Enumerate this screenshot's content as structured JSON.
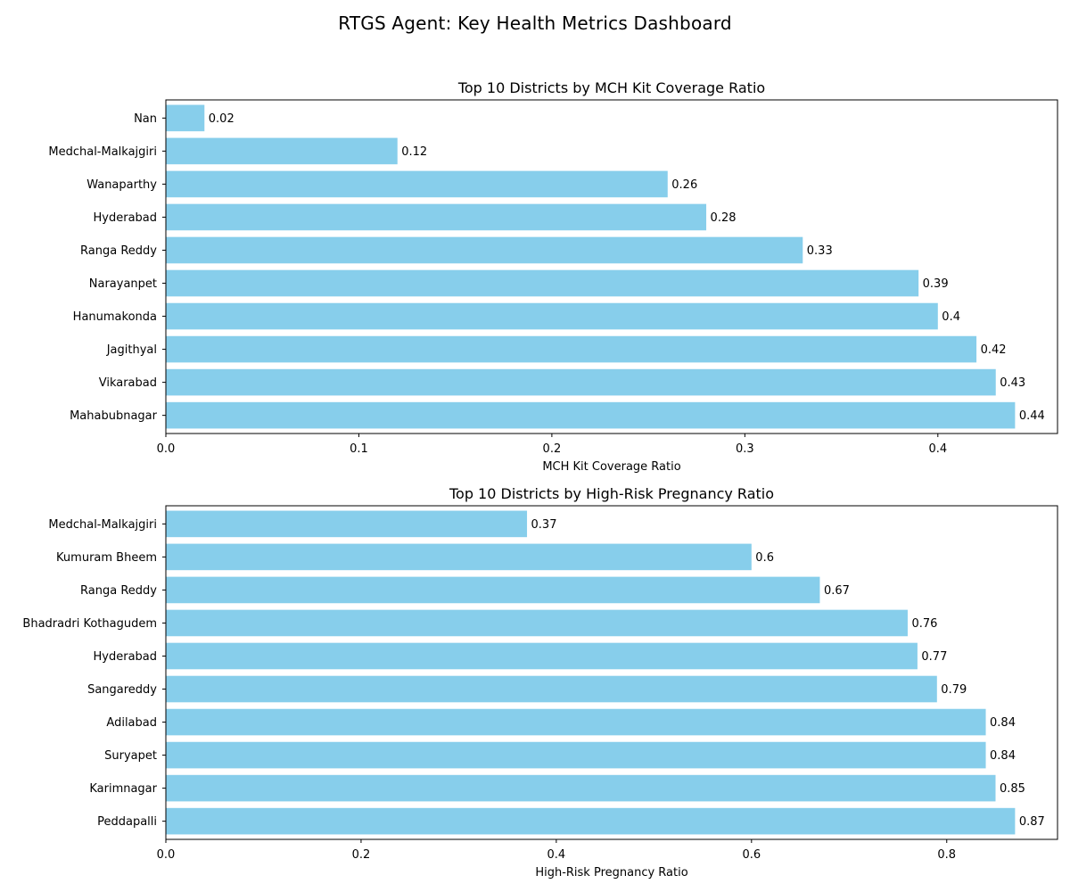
{
  "suptitle": "RTGS Agent: Key Health Metrics Dashboard",
  "colors": {
    "bar": "#87ceeb",
    "axis": "#000000",
    "background": "#ffffff"
  },
  "chart_data": [
    {
      "type": "bar",
      "orientation": "horizontal",
      "title": "Top 10 Districts by MCH Kit Coverage Ratio",
      "xlabel": "MCH Kit Coverage Ratio",
      "ylabel": "",
      "xlim": [
        0,
        0.462
      ],
      "xticks": [
        0.0,
        0.1,
        0.2,
        0.3,
        0.4
      ],
      "xtick_labels": [
        "0.0",
        "0.1",
        "0.2",
        "0.3",
        "0.4"
      ],
      "grid": false,
      "categories": [
        "Nan",
        "Medchal-Malkajgiri",
        "Wanaparthy",
        "Hyderabad",
        "Ranga Reddy",
        "Narayanpet",
        "Hanumakonda",
        "Jagithyal",
        "Vikarabad",
        "Mahabubnagar"
      ],
      "values": [
        0.02,
        0.12,
        0.26,
        0.28,
        0.33,
        0.39,
        0.4,
        0.42,
        0.43,
        0.44
      ],
      "data_labels": [
        "0.02",
        "0.12",
        "0.26",
        "0.28",
        "0.33",
        "0.39",
        "0.4",
        "0.42",
        "0.43",
        "0.44"
      ]
    },
    {
      "type": "bar",
      "orientation": "horizontal",
      "title": "Top 10 Districts by High-Risk Pregnancy Ratio",
      "xlabel": "High-Risk Pregnancy Ratio",
      "ylabel": "",
      "xlim": [
        0,
        0.9135
      ],
      "xticks": [
        0.0,
        0.2,
        0.4,
        0.6,
        0.8
      ],
      "xtick_labels": [
        "0.0",
        "0.2",
        "0.4",
        "0.6",
        "0.8"
      ],
      "grid": false,
      "categories": [
        "Medchal-Malkajgiri",
        "Kumuram Bheem",
        "Ranga Reddy",
        "Bhadradri Kothagudem",
        "Hyderabad",
        "Sangareddy",
        "Adilabad",
        "Suryapet",
        "Karimnagar",
        "Peddapalli"
      ],
      "values": [
        0.37,
        0.6,
        0.67,
        0.76,
        0.77,
        0.79,
        0.84,
        0.84,
        0.85,
        0.87
      ],
      "data_labels": [
        "0.37",
        "0.6",
        "0.67",
        "0.76",
        "0.77",
        "0.79",
        "0.84",
        "0.84",
        "0.85",
        "0.87"
      ]
    }
  ]
}
